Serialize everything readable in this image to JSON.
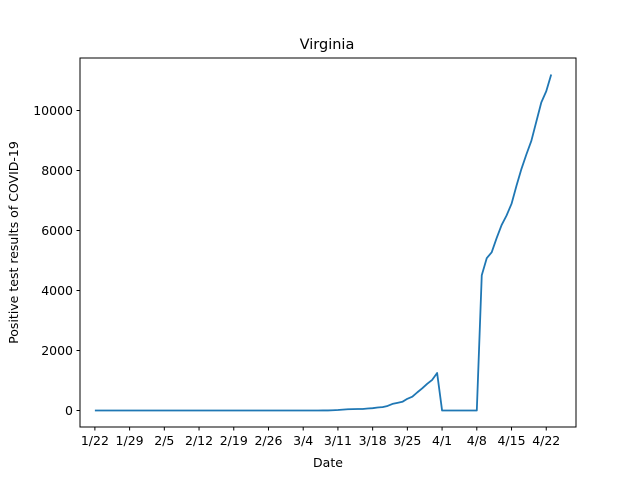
{
  "chart_data": {
    "type": "line",
    "title": "Virginia",
    "xlabel": "Date",
    "ylabel": "Positive test results of COVID-19",
    "x_start": "1/22",
    "x_ticks": [
      "1/22",
      "1/29",
      "2/5",
      "2/12",
      "2/19",
      "2/26",
      "3/4",
      "3/11",
      "3/18",
      "3/25",
      "4/1",
      "4/8",
      "4/15",
      "4/22"
    ],
    "y_ticks": [
      0,
      2000,
      4000,
      6000,
      8000,
      10000
    ],
    "xlim": [
      "1/19",
      "4/28"
    ],
    "ylim": [
      -550,
      11750
    ],
    "grid": false,
    "legend": "none",
    "series": [
      {
        "color": "#1f77b4",
        "points": [
          [
            "1/22",
            0
          ],
          [
            "3/7",
            0
          ],
          [
            "3/8",
            2
          ],
          [
            "3/9",
            2
          ],
          [
            "3/10",
            9
          ],
          [
            "3/11",
            17
          ],
          [
            "3/12",
            30
          ],
          [
            "3/13",
            41
          ],
          [
            "3/14",
            45
          ],
          [
            "3/15",
            49
          ],
          [
            "3/16",
            51
          ],
          [
            "3/17",
            67
          ],
          [
            "3/18",
            77
          ],
          [
            "3/19",
            99
          ],
          [
            "3/20",
            113
          ],
          [
            "3/21",
            152
          ],
          [
            "3/22",
            219
          ],
          [
            "3/23",
            254
          ],
          [
            "3/24",
            290
          ],
          [
            "3/25",
            391
          ],
          [
            "3/26",
            460
          ],
          [
            "3/27",
            604
          ],
          [
            "3/28",
            739
          ],
          [
            "3/29",
            890
          ],
          [
            "3/30",
            1020
          ],
          [
            "3/31",
            1250
          ],
          [
            "4/1",
            0
          ],
          [
            "4/8",
            0
          ],
          [
            "4/9",
            4509
          ],
          [
            "4/10",
            5077
          ],
          [
            "4/11",
            5274
          ],
          [
            "4/12",
            5747
          ],
          [
            "4/13",
            6182
          ],
          [
            "4/14",
            6500
          ],
          [
            "4/15",
            6889
          ],
          [
            "4/16",
            7491
          ],
          [
            "4/17",
            8053
          ],
          [
            "4/18",
            8537
          ],
          [
            "4/19",
            8990
          ],
          [
            "4/20",
            9630
          ],
          [
            "4/21",
            10266
          ],
          [
            "4/22",
            10641
          ],
          [
            "4/23",
            11200
          ]
        ]
      }
    ]
  }
}
